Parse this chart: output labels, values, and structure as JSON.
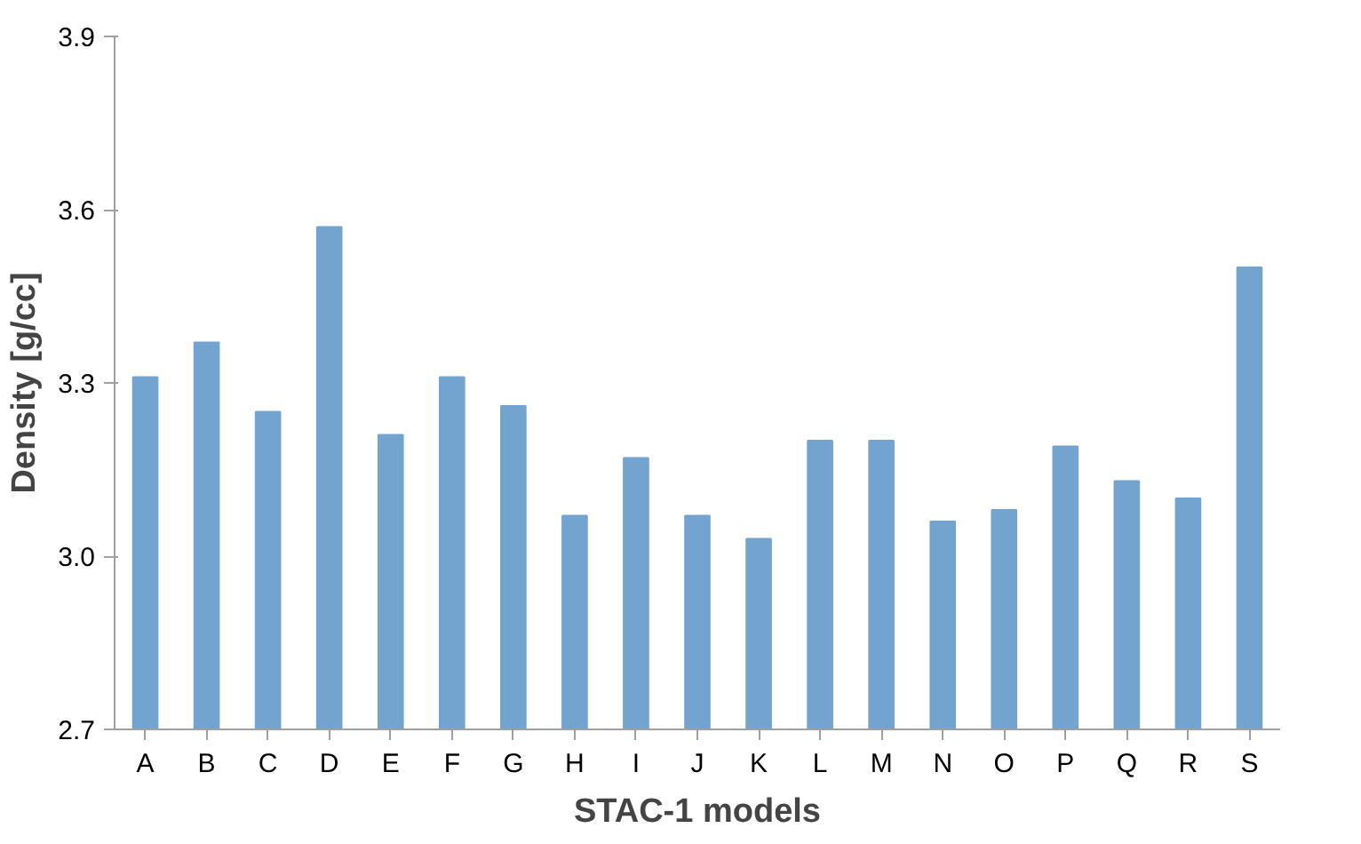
{
  "chart_data": {
    "type": "bar",
    "xlabel": "STAC-1 models",
    "ylabel": "Density [g/cc]",
    "categories": [
      "A",
      "B",
      "C",
      "D",
      "E",
      "F",
      "G",
      "H",
      "I",
      "J",
      "K",
      "L",
      "M",
      "N",
      "O",
      "P",
      "Q",
      "R",
      "S"
    ],
    "values": [
      3.31,
      3.37,
      3.25,
      3.57,
      3.21,
      3.31,
      3.26,
      3.07,
      3.17,
      3.07,
      3.03,
      3.2,
      3.2,
      3.06,
      3.08,
      3.19,
      3.13,
      3.1,
      3.5
    ],
    "color": "#72a4cf",
    "ylim": [
      2.7,
      3.9
    ],
    "yticks": [
      2.7,
      {
        "value": 3,
        "label": "3.0"
      },
      3.3,
      3.6,
      3.9
    ],
    "grid": false
  }
}
